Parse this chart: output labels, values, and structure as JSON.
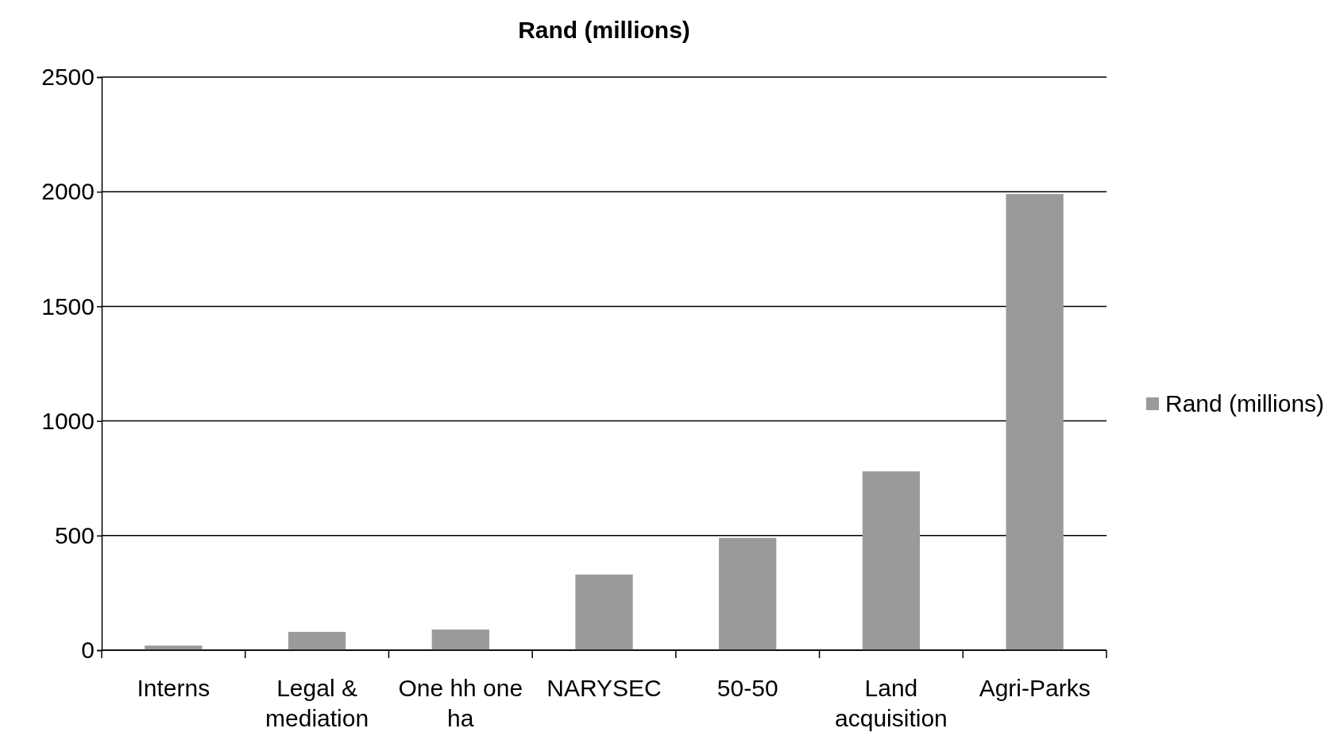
{
  "chart_data": {
    "type": "bar",
    "title": "Rand (millions)",
    "categories": [
      "Interns",
      "Legal & mediation",
      "One hh one ha",
      "NARYSEC",
      "50-50",
      "Land acquisition",
      "Agri-Parks"
    ],
    "series": [
      {
        "name": "Rand (millions)",
        "color": "#9a9a9a",
        "values": [
          20,
          80,
          90,
          330,
          490,
          780,
          1990
        ]
      }
    ],
    "ylim": [
      0,
      2500
    ],
    "yticks": [
      0,
      500,
      1000,
      1500,
      2000,
      2500
    ],
    "grid": "y",
    "legend": "right"
  }
}
